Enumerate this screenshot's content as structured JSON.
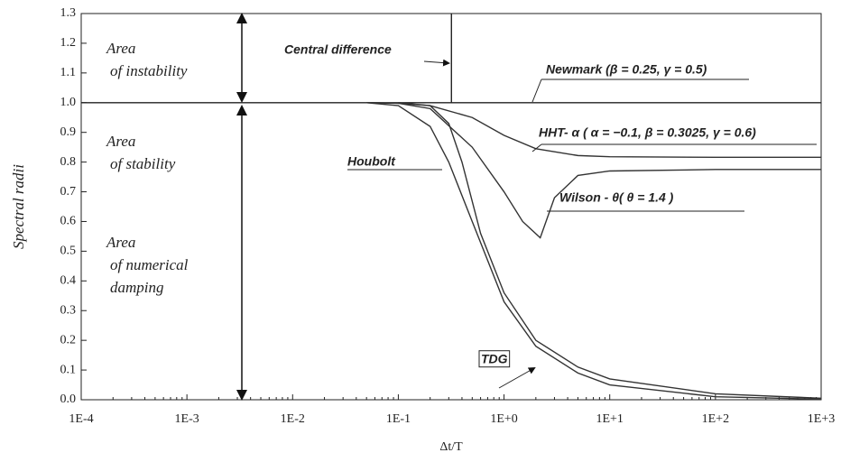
{
  "chart_data": {
    "type": "line",
    "x_label": "Δt/T",
    "y_label": "Spectral radii",
    "log_x": true,
    "xlim": [
      0.0001,
      1000
    ],
    "ylim": [
      0,
      1.3
    ],
    "xticks": [
      {
        "value": 0.0001,
        "label": "1E-4"
      },
      {
        "value": 0.001,
        "label": "1E-3"
      },
      {
        "value": 0.01,
        "label": "1E-2"
      },
      {
        "value": 0.1,
        "label": "1E-1"
      },
      {
        "value": 1,
        "label": "1E+0"
      },
      {
        "value": 10,
        "label": "1E+1"
      },
      {
        "value": 100,
        "label": "1E+2"
      },
      {
        "value": 1000,
        "label": "1E+3"
      }
    ],
    "yticks": [
      {
        "value": 0,
        "label": "0.0"
      },
      0.1,
      0.2,
      0.3,
      0.4,
      0.5,
      0.6,
      0.7,
      0.8,
      0.9,
      {
        "value": 1,
        "label": "1.0"
      },
      1.1,
      1.2,
      1.3
    ],
    "annotations": [
      [
        "Area",
        "of instability"
      ],
      [
        "Area",
        "of stability"
      ],
      [
        "Area",
        "of numerical",
        "damping"
      ]
    ],
    "series": [
      {
        "name": "Central difference",
        "color": "#222222",
        "x": [
          0.318,
          0.318
        ],
        "values": [
          1.0,
          1.3
        ]
      },
      {
        "name": "Newmark  (β = 0.25, γ = 0.5)",
        "color": "#222222",
        "x": [
          0.0001,
          1000
        ],
        "values": [
          1.0,
          1.0
        ]
      },
      {
        "name": "HHT- α ( α = −0.1, β = 0.3025, γ = 0.6)",
        "color": "#333333",
        "x": [
          0.05,
          0.1,
          0.2,
          0.5,
          1,
          2,
          5,
          10,
          100,
          1000
        ],
        "values": [
          1,
          0.998,
          0.99,
          0.95,
          0.89,
          0.845,
          0.822,
          0.818,
          0.816,
          0.816
        ]
      },
      {
        "name": "Wilson - θ( θ = 1.4 )",
        "color": "#333333",
        "x": [
          0.05,
          0.1,
          0.2,
          0.5,
          1,
          1.5,
          2.2,
          3,
          5,
          10,
          100,
          1000
        ],
        "values": [
          1,
          0.998,
          0.98,
          0.85,
          0.7,
          0.6,
          0.545,
          0.68,
          0.755,
          0.77,
          0.775,
          0.775
        ]
      },
      {
        "name": "Houbolt",
        "color": "#333333",
        "x": [
          0.05,
          0.1,
          0.2,
          0.3,
          0.5,
          1,
          2,
          5,
          10,
          100,
          1000
        ],
        "values": [
          1,
          0.99,
          0.92,
          0.8,
          0.6,
          0.33,
          0.18,
          0.09,
          0.05,
          0.01,
          0.002
        ]
      },
      {
        "name": "TDG",
        "color": "#333333",
        "x": [
          0.1,
          0.2,
          0.3,
          0.4,
          0.6,
          1,
          2,
          5,
          10,
          100,
          1000
        ],
        "values": [
          1,
          0.99,
          0.93,
          0.8,
          0.56,
          0.36,
          0.2,
          0.11,
          0.07,
          0.02,
          0.005
        ]
      }
    ]
  }
}
